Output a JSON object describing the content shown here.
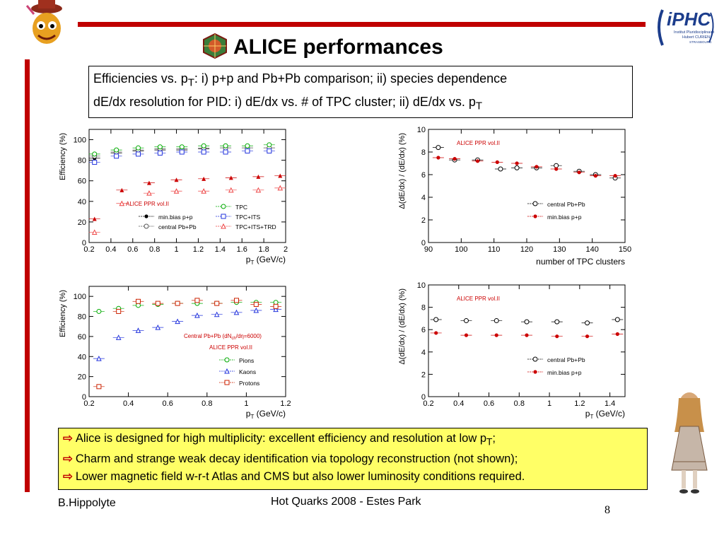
{
  "slide": {
    "title": "ALICE performances",
    "subtitle_line1_a": "Efficiencies vs. p",
    "subtitle_line1_sub": "T",
    "subtitle_line1_b": ": i) p+p and Pb+Pb comparison; ii) species dependence",
    "subtitle_line2_a": "dE/dx resolution for PID: i) dE/dx vs. # of TPC cluster; ii) dE/dx vs. p",
    "subtitle_line2_sub": "T",
    "bullets": [
      {
        "text": "Alice is designed for high multiplicity: excellent efficiency and resolution at low p",
        "sub": "T",
        "tail": ";"
      },
      {
        "text": "Charm and strange weak decay identification via topology reconstruction (not shown);",
        "sub": "",
        "tail": ""
      },
      {
        "text": "Lower magnetic field w-r-t Atlas and CMS but also lower luminosity conditions required.",
        "sub": "",
        "tail": ""
      }
    ],
    "bullet_arrow": "⇨",
    "footer_author": "B.Hippolyte",
    "footer_conference": "Hot Quarks 2008 - Estes Park",
    "page_number": "8",
    "logo_right_text": "iPHC",
    "logo_right_sub1": "Institut Pluridisciplinaire",
    "logo_right_sub2": "Hubert CURIEN",
    "logo_right_sub3": "STRASBOURG"
  },
  "colors": {
    "accent_red": "#c00000",
    "highlight_yellow": "#ffff66"
  },
  "chart_data": [
    {
      "id": "eff_pp_pbpb",
      "type": "scatter",
      "xlabel": "p",
      "xlabel_sub": "T",
      "xlabel_unit": " (GeV/c)",
      "ylabel": "Efficiency (%)",
      "xlim": [
        0.2,
        2.0
      ],
      "ylim": [
        0,
        110
      ],
      "xticks": [
        0.2,
        0.4,
        0.6,
        0.8,
        1.0,
        1.2,
        1.4,
        1.6,
        1.8,
        2.0
      ],
      "xtick_labels": [
        "0.2",
        "0.4",
        "0.6",
        "0.8",
        "1",
        "1.2",
        "1.4",
        "1.6",
        "1.8",
        "2"
      ],
      "yticks": [
        0,
        20,
        40,
        60,
        80,
        100
      ],
      "annotation": "ALICE PPR vol.II",
      "series": [
        {
          "name": "min.bias p+p",
          "group": "left",
          "marker": "dot",
          "color": "#000000",
          "x": [
            0.25,
            0.45,
            0.65,
            0.85,
            1.05,
            1.25,
            1.45,
            1.65,
            1.85
          ],
          "y": [
            82,
            87,
            89,
            90,
            90,
            91,
            92,
            92,
            92
          ]
        },
        {
          "name": "central Pb+Pb",
          "group": "left",
          "marker": "ocircle",
          "color": "#555555",
          "x": [
            0.25,
            0.45,
            0.65,
            0.85,
            1.05,
            1.25,
            1.45,
            1.65,
            1.85
          ],
          "y": [
            84,
            88,
            90,
            91,
            91,
            92,
            92,
            92,
            92
          ]
        },
        {
          "name": "TPC",
          "group": "right",
          "marker": "ocircle",
          "color": "#00aa00",
          "x": [
            0.25,
            0.45,
            0.65,
            0.85,
            1.05,
            1.25,
            1.45,
            1.65,
            1.85
          ],
          "y": [
            86,
            90,
            92,
            93,
            93,
            94,
            94,
            94,
            95
          ]
        },
        {
          "name": "TPC+ITS",
          "group": "right",
          "marker": "osquare",
          "color": "#2233dd",
          "x": [
            0.25,
            0.45,
            0.65,
            0.85,
            1.05,
            1.25,
            1.45,
            1.65,
            1.85
          ],
          "y": [
            78,
            84,
            86,
            87,
            88,
            88,
            88,
            89,
            89
          ]
        },
        {
          "name": "",
          "group": "none",
          "marker": "tri",
          "color": "#cc0000",
          "x": [
            0.25,
            0.5,
            0.75,
            1.0,
            1.25,
            1.5,
            1.75,
            1.95
          ],
          "y": [
            23,
            51,
            58,
            61,
            62,
            63,
            64,
            65
          ]
        },
        {
          "name": "TPC+ITS+TRD",
          "group": "right",
          "marker": "otri",
          "color": "#ee4444",
          "x": [
            0.25,
            0.5,
            0.75,
            1.0,
            1.25,
            1.5,
            1.75,
            1.95
          ],
          "y": [
            10,
            38,
            48,
            50,
            50,
            51,
            51,
            53
          ]
        }
      ]
    },
    {
      "id": "dedx_vs_clusters",
      "type": "scatter",
      "xlabel": "number of TPC clusters",
      "ylabel": "Δ(dE/dx) / (dE/dx) (%)",
      "xlim": [
        90,
        150
      ],
      "ylim": [
        0,
        10
      ],
      "xticks": [
        90,
        100,
        110,
        120,
        130,
        140,
        150
      ],
      "xtick_labels": [
        "90",
        "100",
        "110",
        "120",
        "130",
        "140",
        "150"
      ],
      "yticks": [
        0,
        2,
        4,
        6,
        8,
        10
      ],
      "annotation": "ALICE PPR vol.II",
      "series": [
        {
          "name": "central Pb+Pb",
          "marker": "ocircle",
          "color": "#000000",
          "x": [
            93,
            98,
            105,
            112,
            117,
            123,
            129,
            136,
            141,
            147
          ],
          "y": [
            8.4,
            7.3,
            7.3,
            6.5,
            6.6,
            6.6,
            6.8,
            6.3,
            6.0,
            5.7
          ]
        },
        {
          "name": "min.bias p+p",
          "marker": "dot",
          "color": "#cc0000",
          "x": [
            93,
            98,
            105,
            111,
            117,
            123,
            129,
            136,
            141,
            147
          ],
          "y": [
            7.5,
            7.4,
            7.2,
            7.1,
            7.0,
            6.7,
            6.5,
            6.2,
            5.9,
            5.9
          ]
        }
      ]
    },
    {
      "id": "eff_species",
      "type": "scatter",
      "xlabel": "p",
      "xlabel_sub": "T",
      "xlabel_unit": " (GeV/c)",
      "ylabel": "Efficiency (%)",
      "xlim": [
        0.2,
        1.2
      ],
      "ylim": [
        0,
        110
      ],
      "xticks": [
        0.2,
        0.4,
        0.6,
        0.8,
        1.0,
        1.2
      ],
      "xtick_labels": [
        "0.2",
        "0.4",
        "0.6",
        "0.8",
        "1",
        "1.2"
      ],
      "yticks": [
        0,
        20,
        40,
        60,
        80,
        100
      ],
      "annotation_1a": "Central Pb+Pb (dN",
      "annotation_1b": "ch",
      "annotation_1c": "/dη=6000)",
      "annotation": "ALICE PPR vol.II",
      "series": [
        {
          "name": "Pions",
          "marker": "ocircle",
          "color": "#00aa00",
          "x": [
            0.25,
            0.35,
            0.45,
            0.55,
            0.65,
            0.75,
            0.85,
            0.95,
            1.05,
            1.15
          ],
          "y": [
            85,
            88,
            91,
            92,
            93,
            93,
            93,
            94,
            94,
            94
          ]
        },
        {
          "name": "Kaons",
          "marker": "otri",
          "color": "#2233dd",
          "x": [
            0.25,
            0.35,
            0.45,
            0.55,
            0.65,
            0.75,
            0.85,
            0.95,
            1.05,
            1.15
          ],
          "y": [
            38,
            59,
            66,
            69,
            75,
            81,
            82,
            84,
            86,
            87
          ]
        },
        {
          "name": "Protons",
          "marker": "osquare",
          "color": "#cc2200",
          "x": [
            0.25,
            0.35,
            0.45,
            0.55,
            0.65,
            0.75,
            0.85,
            0.95,
            1.05,
            1.15
          ],
          "y": [
            10,
            85,
            95,
            93,
            93,
            96,
            93,
            96,
            92,
            90
          ]
        }
      ]
    },
    {
      "id": "dedx_vs_pt",
      "type": "scatter",
      "xlabel": "p",
      "xlabel_sub": "T",
      "xlabel_unit": " (GeV/c)",
      "ylabel": "Δ(dE/dx) / (dE/dx) (%)",
      "xlim": [
        0.2,
        1.5
      ],
      "ylim": [
        0,
        10
      ],
      "xticks": [
        0.2,
        0.4,
        0.6,
        0.8,
        1.0,
        1.2,
        1.4
      ],
      "xtick_labels": [
        "0.2",
        "0.4",
        "0.6",
        "0.8",
        "1",
        "1.2",
        "1.4"
      ],
      "yticks": [
        0,
        2,
        4,
        6,
        8,
        10
      ],
      "annotation": "ALICE PPR vol.II",
      "series": [
        {
          "name": "central Pb+Pb",
          "marker": "ocircle",
          "color": "#000000",
          "x": [
            0.25,
            0.45,
            0.65,
            0.85,
            1.05,
            1.25,
            1.45
          ],
          "y": [
            6.9,
            6.8,
            6.8,
            6.7,
            6.7,
            6.6,
            6.9
          ]
        },
        {
          "name": "min.bias p+p",
          "marker": "dot",
          "color": "#cc0000",
          "x": [
            0.25,
            0.45,
            0.65,
            0.85,
            1.05,
            1.25,
            1.45
          ],
          "y": [
            5.7,
            5.5,
            5.5,
            5.5,
            5.4,
            5.4,
            5.6
          ]
        }
      ]
    }
  ]
}
